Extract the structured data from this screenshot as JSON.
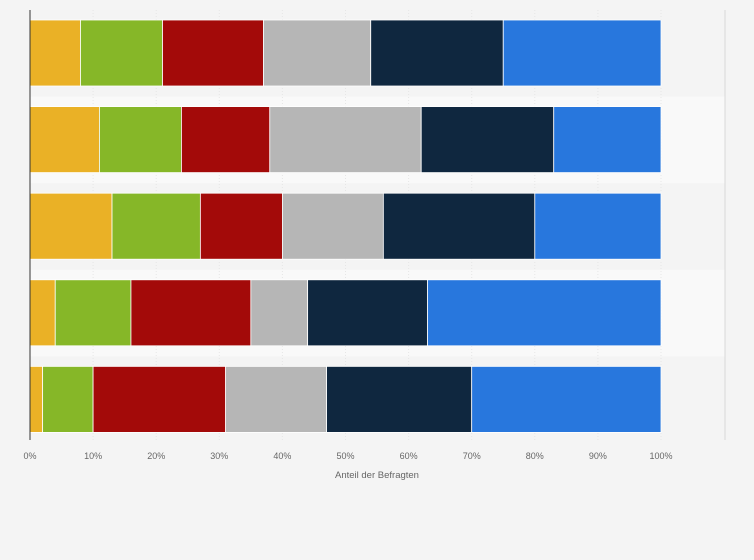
{
  "chart_data": {
    "type": "bar",
    "orientation": "horizontal",
    "stacked": true,
    "title": "",
    "xlabel": "Anteil der Befragten",
    "ylabel": "",
    "xlim": [
      0,
      100
    ],
    "x_ticks": [
      "0%",
      "10%",
      "20%",
      "30%",
      "40%",
      "50%",
      "60%",
      "70%",
      "80%",
      "90%",
      "100%"
    ],
    "categories": [
      "",
      "",
      "",
      "",
      ""
    ],
    "series": [
      {
        "color": "#eab126",
        "values": [
          8,
          11,
          13,
          4,
          2
        ]
      },
      {
        "color": "#86b728",
        "values": [
          13,
          13,
          14,
          12,
          8
        ]
      },
      {
        "color": "#a30a09",
        "values": [
          16,
          14,
          13,
          19,
          21
        ]
      },
      {
        "color": "#b6b6b6",
        "values": [
          17,
          24,
          16,
          9,
          16
        ]
      },
      {
        "color": "#0f273f",
        "values": [
          21,
          21,
          24,
          19,
          23
        ]
      },
      {
        "color": "#2877dd",
        "values": [
          25,
          17,
          20,
          37,
          30
        ]
      }
    ],
    "grid": true,
    "legend": "none"
  }
}
